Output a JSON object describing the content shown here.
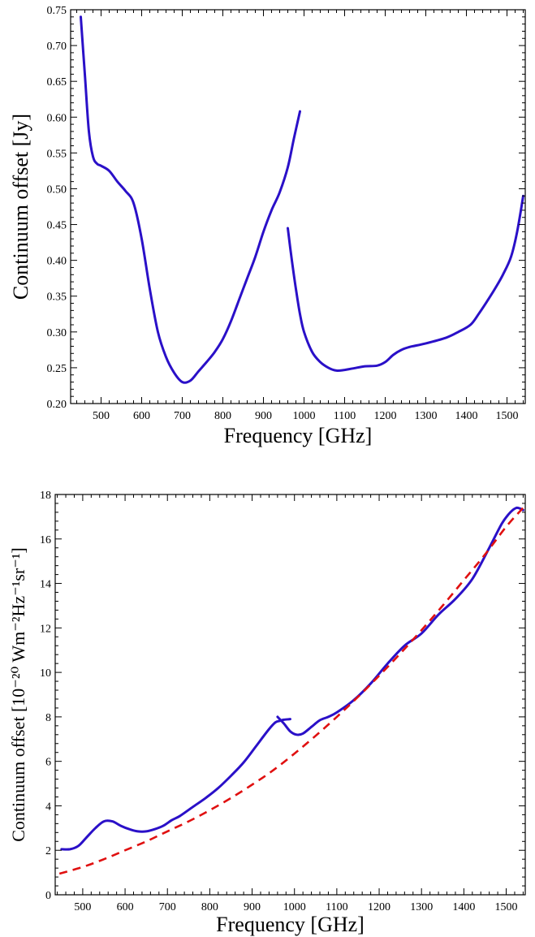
{
  "chart_data": [
    {
      "type": "line",
      "title": "",
      "xlabel": "Frequency [GHz]",
      "ylabel": "Continuum offset [Jy]",
      "xlim": [
        425,
        1545
      ],
      "ylim": [
        0.2,
        0.75
      ],
      "x_ticks": [
        500,
        600,
        700,
        800,
        900,
        1000,
        1100,
        1200,
        1300,
        1400,
        1500
      ],
      "x_tick_labels": [
        "500",
        "600",
        "700",
        "800",
        "900",
        "1000",
        "1100",
        "1200",
        "1300",
        "1400",
        "1500"
      ],
      "y_ticks": [
        0.2,
        0.25,
        0.3,
        0.35,
        0.4,
        0.45,
        0.5,
        0.55,
        0.6,
        0.65,
        0.7,
        0.75
      ],
      "y_tick_labels": [
        "0.20",
        "0.25",
        "0.30",
        "0.35",
        "0.40",
        "0.45",
        "0.50",
        "0.55",
        "0.60",
        "0.65",
        "0.70",
        "0.75"
      ],
      "grid": false,
      "series": [
        {
          "color": "#2a10c8",
          "style": "solid",
          "x": [
            450,
            460,
            470,
            480,
            490,
            500,
            520,
            540,
            560,
            580,
            600,
            620,
            640,
            660,
            680,
            700,
            720,
            740,
            760,
            780,
            800,
            820,
            840,
            860,
            880,
            900,
            920,
            940,
            960,
            975,
            990
          ],
          "y": [
            0.74,
            0.66,
            0.58,
            0.545,
            0.535,
            0.532,
            0.525,
            0.51,
            0.497,
            0.48,
            0.43,
            0.36,
            0.3,
            0.265,
            0.243,
            0.23,
            0.232,
            0.245,
            0.258,
            0.272,
            0.29,
            0.315,
            0.345,
            0.375,
            0.405,
            0.44,
            0.47,
            0.495,
            0.53,
            0.57,
            0.608
          ]
        },
        {
          "color": "#2a10c8",
          "style": "solid",
          "x": [
            960,
            970,
            980,
            990,
            1000,
            1020,
            1040,
            1060,
            1080,
            1100,
            1120,
            1150,
            1180,
            1200,
            1220,
            1240,
            1260,
            1300,
            1350,
            1380,
            1410,
            1430,
            1450,
            1470,
            1490,
            1510,
            1525,
            1540
          ],
          "y": [
            0.445,
            0.4,
            0.36,
            0.325,
            0.3,
            0.272,
            0.258,
            0.25,
            0.246,
            0.247,
            0.249,
            0.252,
            0.253,
            0.258,
            0.268,
            0.275,
            0.279,
            0.284,
            0.292,
            0.3,
            0.31,
            0.325,
            0.342,
            0.36,
            0.38,
            0.405,
            0.44,
            0.49
          ]
        }
      ]
    },
    {
      "type": "line",
      "title": "",
      "xlabel": "Frequency [GHz]",
      "ylabel": "Continuum offset [10⁻²⁰ Wm⁻²Hz⁻¹sr⁻¹]",
      "xlim": [
        435,
        1545
      ],
      "ylim": [
        0,
        18
      ],
      "x_ticks": [
        500,
        600,
        700,
        800,
        900,
        1000,
        1100,
        1200,
        1300,
        1400,
        1500
      ],
      "x_tick_labels": [
        "500",
        "600",
        "700",
        "800",
        "900",
        "1000",
        "1100",
        "1200",
        "1300",
        "1400",
        "1500"
      ],
      "y_ticks": [
        0,
        2,
        4,
        6,
        8,
        10,
        12,
        14,
        16,
        18
      ],
      "y_tick_labels": [
        "0",
        "2",
        "4",
        "6",
        "8",
        "10",
        "12",
        "14",
        "16",
        "18"
      ],
      "grid": false,
      "series": [
        {
          "color": "#2a10c8",
          "style": "solid",
          "x": [
            450,
            470,
            490,
            510,
            530,
            550,
            570,
            590,
            610,
            630,
            650,
            670,
            690,
            710,
            730,
            760,
            790,
            820,
            850,
            880,
            910,
            940,
            955,
            965,
            975,
            990
          ],
          "y": [
            2.05,
            2.05,
            2.2,
            2.6,
            3.0,
            3.3,
            3.3,
            3.1,
            2.95,
            2.85,
            2.85,
            2.95,
            3.1,
            3.35,
            3.55,
            3.95,
            4.35,
            4.8,
            5.35,
            5.95,
            6.7,
            7.45,
            7.75,
            7.82,
            7.87,
            7.9
          ]
        },
        {
          "color": "#2a10c8",
          "style": "solid",
          "x": [
            960,
            975,
            990,
            1005,
            1020,
            1040,
            1060,
            1080,
            1100,
            1140,
            1180,
            1220,
            1260,
            1300,
            1340,
            1380,
            1420,
            1460,
            1490,
            1510,
            1525,
            1540
          ],
          "y": [
            8.0,
            7.7,
            7.35,
            7.2,
            7.25,
            7.55,
            7.85,
            8.0,
            8.2,
            8.75,
            9.5,
            10.4,
            11.2,
            11.75,
            12.6,
            13.3,
            14.2,
            15.6,
            16.7,
            17.2,
            17.4,
            17.3
          ]
        },
        {
          "color": "#e01010",
          "style": "dashed",
          "x": [
            445,
            500,
            550,
            600,
            650,
            700,
            750,
            800,
            850,
            900,
            950,
            1000,
            1050,
            1100,
            1150,
            1200,
            1250,
            1300,
            1350,
            1400,
            1450,
            1500,
            1540
          ],
          "y": [
            0.95,
            1.25,
            1.6,
            2.0,
            2.4,
            2.85,
            3.3,
            3.8,
            4.35,
            4.95,
            5.6,
            6.35,
            7.15,
            8.0,
            8.9,
            9.85,
            10.85,
            11.9,
            13.0,
            14.15,
            15.3,
            16.55,
            17.4
          ]
        }
      ]
    }
  ]
}
